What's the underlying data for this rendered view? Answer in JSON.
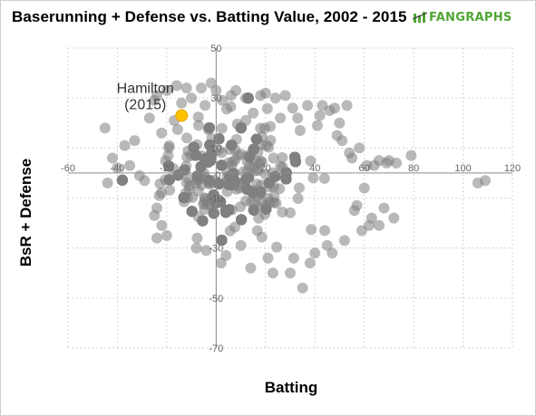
{
  "title": "Baserunning + Defense vs. Batting Value, 2002 - 2015",
  "brand": {
    "wordmark": "FANGRAPHS",
    "icon": "fangraphs-logo-icon",
    "color": "#52a636"
  },
  "colors": {
    "points": "#7f7f7f",
    "highlight": "#fcc200",
    "grid": "#c8c8c8"
  },
  "chart_data": {
    "type": "scatter",
    "title": "Baserunning + Defense vs. Batting Value, 2002 - 2015",
    "xlabel": "Batting",
    "ylabel": "BsR + Defense",
    "xlim": [
      -60,
      120
    ],
    "ylim": [
      -70,
      50
    ],
    "x_ticks": [
      -60,
      -40,
      -20,
      0,
      20,
      40,
      60,
      80,
      100,
      120
    ],
    "y_ticks": [
      50,
      30,
      10,
      -10,
      -30,
      -50,
      -70
    ],
    "grid": true,
    "legend": "none",
    "highlight": {
      "label": [
        "Hamilton",
        "(2015)"
      ],
      "x": -14,
      "y": 23
    },
    "cluster": {
      "n": 1850,
      "x_mean": 5,
      "x_sd": 14,
      "y_mean": 0,
      "y_sd": 11.5,
      "note": "dense central mass of player-seasons"
    },
    "outliers": [
      [
        -45,
        18
      ],
      [
        -44,
        -4
      ],
      [
        -42,
        6
      ],
      [
        -40,
        2
      ],
      [
        -37,
        11
      ],
      [
        -35,
        3
      ],
      [
        -33,
        13
      ],
      [
        -31,
        -1
      ],
      [
        -29,
        -3
      ],
      [
        -27,
        22
      ],
      [
        -25,
        29
      ],
      [
        -24,
        31
      ],
      [
        -23,
        -9
      ],
      [
        -22,
        -21
      ],
      [
        -20,
        -25
      ],
      [
        -24,
        -26
      ],
      [
        -25,
        -17
      ],
      [
        -24,
        -14
      ],
      [
        -20,
        33
      ],
      [
        -17,
        21
      ],
      [
        -16,
        35
      ],
      [
        -14,
        28
      ],
      [
        -12,
        34
      ],
      [
        -10,
        30
      ],
      [
        -8,
        -30
      ],
      [
        -6,
        34
      ],
      [
        -4,
        -31
      ],
      [
        -2,
        36
      ],
      [
        0,
        33
      ],
      [
        2,
        -36
      ],
      [
        4,
        -33
      ],
      [
        6,
        31
      ],
      [
        8,
        33
      ],
      [
        10,
        -29
      ],
      [
        12,
        30
      ],
      [
        14,
        -38
      ],
      [
        15,
        24
      ],
      [
        18,
        31
      ],
      [
        20,
        32
      ],
      [
        21,
        -34
      ],
      [
        23,
        -40
      ],
      [
        24,
        30
      ],
      [
        26,
        22
      ],
      [
        28,
        31
      ],
      [
        30,
        -40
      ],
      [
        31,
        26
      ],
      [
        33,
        22
      ],
      [
        34,
        17
      ],
      [
        35,
        -46
      ],
      [
        37,
        27
      ],
      [
        38,
        -36
      ],
      [
        40,
        -32
      ],
      [
        41,
        19
      ],
      [
        42,
        23
      ],
      [
        43,
        27
      ],
      [
        44,
        -23
      ],
      [
        45,
        -29
      ],
      [
        46,
        25
      ],
      [
        47,
        -32
      ],
      [
        48,
        26
      ],
      [
        49,
        15
      ],
      [
        50,
        20
      ],
      [
        51,
        13
      ],
      [
        52,
        -27
      ],
      [
        53,
        27
      ],
      [
        54,
        8
      ],
      [
        55,
        6
      ],
      [
        56,
        -15
      ],
      [
        57,
        -13
      ],
      [
        58,
        10
      ],
      [
        59,
        -23
      ],
      [
        60,
        -6
      ],
      [
        61,
        3
      ],
      [
        62,
        -21
      ],
      [
        63,
        -18
      ],
      [
        64,
        3
      ],
      [
        66,
        -21
      ],
      [
        66,
        5
      ],
      [
        68,
        -14
      ],
      [
        69,
        4
      ],
      [
        70,
        5
      ],
      [
        72,
        -18
      ],
      [
        73,
        4
      ],
      [
        79,
        7
      ],
      [
        106,
        -4
      ],
      [
        109,
        -3
      ]
    ]
  }
}
